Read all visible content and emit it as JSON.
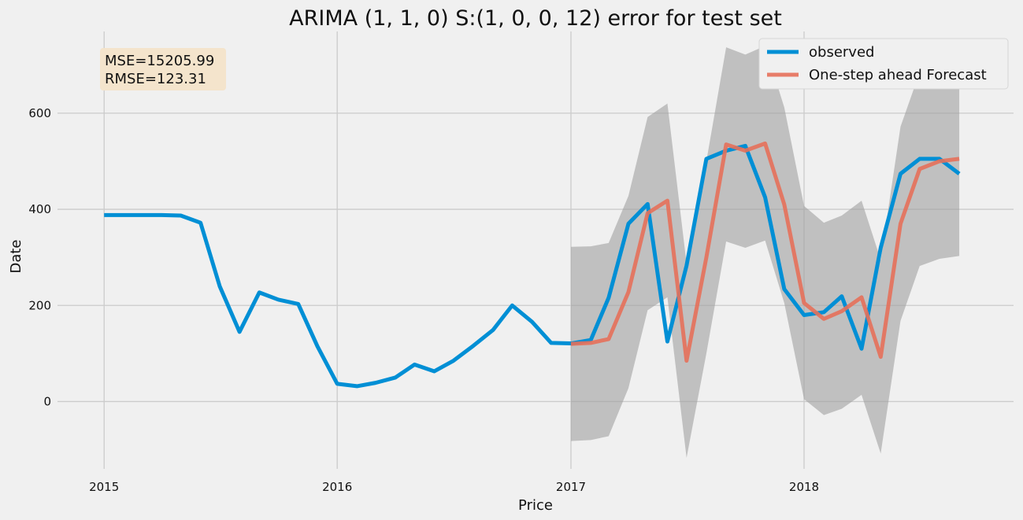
{
  "chart_data": {
    "type": "line",
    "title": "ARIMA (1, 1, 0) S:(1, 0, 0, 12) error for test set",
    "xlabel": "Price",
    "ylabel": "Date",
    "xlim": [
      "2014-10-20",
      "2018-11-25"
    ],
    "ylim": [
      -140,
      770
    ],
    "x_ticks": [
      {
        "date": "2015-01-01",
        "label": "2015"
      },
      {
        "date": "2016-01-01",
        "label": "2016"
      },
      {
        "date": "2017-01-01",
        "label": "2017"
      },
      {
        "date": "2018-01-01",
        "label": "2018"
      }
    ],
    "y_ticks": [
      0,
      200,
      400,
      600
    ],
    "grid": true,
    "legend_position": "top-right",
    "annotation": {
      "mse": "MSE=15205.99",
      "rmse": "RMSE=123.31",
      "position": "top-left"
    },
    "colors": {
      "observed": "#008fd5",
      "forecast": "#e5705a",
      "ci": "#a0a0a0",
      "annotation_box": "#f4e4cc"
    },
    "series": [
      {
        "name": "observed",
        "x": [
          "2015-01-01",
          "2015-02-01",
          "2015-03-01",
          "2015-04-01",
          "2015-05-01",
          "2015-06-01",
          "2015-07-01",
          "2015-08-01",
          "2015-09-01",
          "2015-10-01",
          "2015-11-01",
          "2015-12-01",
          "2016-01-01",
          "2016-02-01",
          "2016-03-01",
          "2016-04-01",
          "2016-05-01",
          "2016-06-01",
          "2016-07-01",
          "2016-08-01",
          "2016-09-01",
          "2016-10-01",
          "2016-11-01",
          "2016-12-01",
          "2017-01-01",
          "2017-02-01",
          "2017-03-01",
          "2017-04-01",
          "2017-05-01",
          "2017-06-01",
          "2017-07-01",
          "2017-08-01",
          "2017-09-01",
          "2017-10-01",
          "2017-11-01",
          "2017-12-01",
          "2018-01-01",
          "2018-02-01",
          "2018-03-01",
          "2018-04-01",
          "2018-05-01",
          "2018-06-01",
          "2018-07-01",
          "2018-08-01",
          "2018-09-01"
        ],
        "values": [
          388,
          388,
          388,
          388,
          387,
          372,
          240,
          145,
          227,
          212,
          203,
          115,
          37,
          32,
          39,
          50,
          77,
          63,
          85,
          116,
          149,
          200,
          166,
          122,
          121,
          128,
          216,
          370,
          411,
          125,
          283,
          505,
          522,
          532,
          425,
          234,
          180,
          186,
          219,
          110,
          320,
          474,
          505,
          505,
          474
        ]
      },
      {
        "name": "One-step ahead Forecast",
        "x": [
          "2017-01-01",
          "2017-02-01",
          "2017-03-01",
          "2017-04-01",
          "2017-05-01",
          "2017-06-01",
          "2017-07-01",
          "2017-08-01",
          "2017-09-01",
          "2017-10-01",
          "2017-11-01",
          "2017-12-01",
          "2018-01-01",
          "2018-02-01",
          "2018-03-01",
          "2018-04-01",
          "2018-05-01",
          "2018-06-01",
          "2018-07-01",
          "2018-08-01",
          "2018-09-01"
        ],
        "values": [
          120,
          122,
          130,
          228,
          392,
          418,
          85,
          300,
          535,
          522,
          537,
          410,
          205,
          172,
          188,
          217,
          93,
          370,
          484,
          500,
          505
        ]
      }
    ],
    "confidence_interval": {
      "x": [
        "2017-01-01",
        "2017-02-01",
        "2017-03-01",
        "2017-04-01",
        "2017-05-01",
        "2017-06-01",
        "2017-07-01",
        "2017-08-01",
        "2017-09-01",
        "2017-10-01",
        "2017-11-01",
        "2017-12-01",
        "2018-01-01",
        "2018-02-01",
        "2018-03-01",
        "2018-04-01",
        "2018-05-01",
        "2018-06-01",
        "2018-07-01",
        "2018-08-01",
        "2018-09-01"
      ],
      "lower": [
        -82,
        -80,
        -72,
        28,
        190,
        217,
        -117,
        100,
        333,
        320,
        335,
        205,
        5,
        -28,
        -15,
        14,
        -108,
        168,
        282,
        297,
        303
      ],
      "upper": [
        322,
        323,
        330,
        428,
        592,
        620,
        287,
        500,
        737,
        722,
        740,
        612,
        407,
        372,
        387,
        418,
        295,
        572,
        685,
        700,
        708
      ]
    }
  }
}
